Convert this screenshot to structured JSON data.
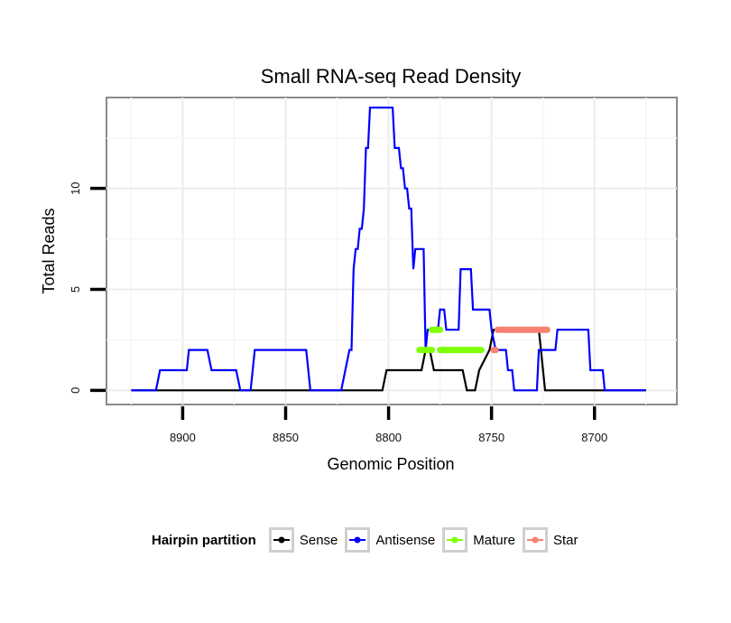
{
  "chart_data": {
    "type": "line",
    "title": "Small RNA-seq Read Density",
    "xlabel": "Genomic Position",
    "ylabel": "Total Reads",
    "x_reversed": true,
    "xlim": [
      8937,
      8660
    ],
    "ylim": [
      -0.7,
      14.5
    ],
    "xticks": [
      8900,
      8850,
      8800,
      8750,
      8700
    ],
    "yticks": [
      0,
      5,
      10
    ],
    "grid": true,
    "legend": {
      "title": "Hairpin partition",
      "position": "bottom",
      "entries": [
        "Sense",
        "Antisense",
        "Mature",
        "Star"
      ]
    },
    "series": [
      {
        "name": "Sense",
        "color": "#000000",
        "points": [
          [
            8925,
            0
          ],
          [
            8803,
            0
          ],
          [
            8801,
            1
          ],
          [
            8784,
            1
          ],
          [
            8782,
            2
          ],
          [
            8780,
            2
          ],
          [
            8778,
            1
          ],
          [
            8769,
            1
          ],
          [
            8767,
            1
          ],
          [
            8766,
            1
          ],
          [
            8764,
            1
          ],
          [
            8762,
            0
          ],
          [
            8759,
            0
          ],
          [
            8758,
            0
          ],
          [
            8756,
            1
          ],
          [
            8751,
            2
          ],
          [
            8749,
            3
          ],
          [
            8727,
            3
          ],
          [
            8724,
            0
          ],
          [
            8675,
            0
          ]
        ]
      },
      {
        "name": "Antisense",
        "color": "#0000ff",
        "points": [
          [
            8925,
            0
          ],
          [
            8913,
            0
          ],
          [
            8911,
            1
          ],
          [
            8898,
            1
          ],
          [
            8897,
            2
          ],
          [
            8888,
            2
          ],
          [
            8886,
            1
          ],
          [
            8874,
            1
          ],
          [
            8872,
            0
          ],
          [
            8867,
            0
          ],
          [
            8865,
            2
          ],
          [
            8840,
            2
          ],
          [
            8838,
            0
          ],
          [
            8823,
            0
          ],
          [
            8819,
            2
          ],
          [
            8818,
            2
          ],
          [
            8817,
            6
          ],
          [
            8816,
            7
          ],
          [
            8815,
            7
          ],
          [
            8814,
            8
          ],
          [
            8813,
            8
          ],
          [
            8812,
            9
          ],
          [
            8811,
            12
          ],
          [
            8810,
            12
          ],
          [
            8809,
            14
          ],
          [
            8798,
            14
          ],
          [
            8797,
            12
          ],
          [
            8795,
            12
          ],
          [
            8794,
            11
          ],
          [
            8793,
            11
          ],
          [
            8792,
            10
          ],
          [
            8791,
            10
          ],
          [
            8790,
            9
          ],
          [
            8789,
            9
          ],
          [
            8788,
            6
          ],
          [
            8787,
            7
          ],
          [
            8783,
            7
          ],
          [
            8782,
            2
          ],
          [
            8781,
            3
          ],
          [
            8777,
            3
          ],
          [
            8776,
            3
          ],
          [
            8775,
            4
          ],
          [
            8773,
            4
          ],
          [
            8772,
            3
          ],
          [
            8766,
            3
          ],
          [
            8765,
            6
          ],
          [
            8760,
            6
          ],
          [
            8759,
            4
          ],
          [
            8751,
            4
          ],
          [
            8750,
            3
          ],
          [
            8748,
            2
          ],
          [
            8743,
            2
          ],
          [
            8742,
            1
          ],
          [
            8740,
            1
          ],
          [
            8739,
            0
          ],
          [
            8728,
            0
          ],
          [
            8727,
            2
          ],
          [
            8719,
            2
          ],
          [
            8718,
            3
          ],
          [
            8703,
            3
          ],
          [
            8702,
            1
          ],
          [
            8696,
            1
          ],
          [
            8695,
            0
          ],
          [
            8675,
            0
          ]
        ]
      },
      {
        "name": "Mature",
        "color": "#7fff00",
        "segments": [
          {
            "x0": 8785,
            "x1": 8779,
            "y": 2
          },
          {
            "x0": 8779,
            "x1": 8775,
            "y": 3
          },
          {
            "x0": 8775,
            "x1": 8755,
            "y": 2
          }
        ]
      },
      {
        "name": "Star",
        "color": "#fa8072",
        "segments": [
          {
            "x0": 8749,
            "x1": 8748,
            "y": 2
          },
          {
            "x0": 8747,
            "x1": 8723,
            "y": 3
          }
        ]
      }
    ]
  }
}
